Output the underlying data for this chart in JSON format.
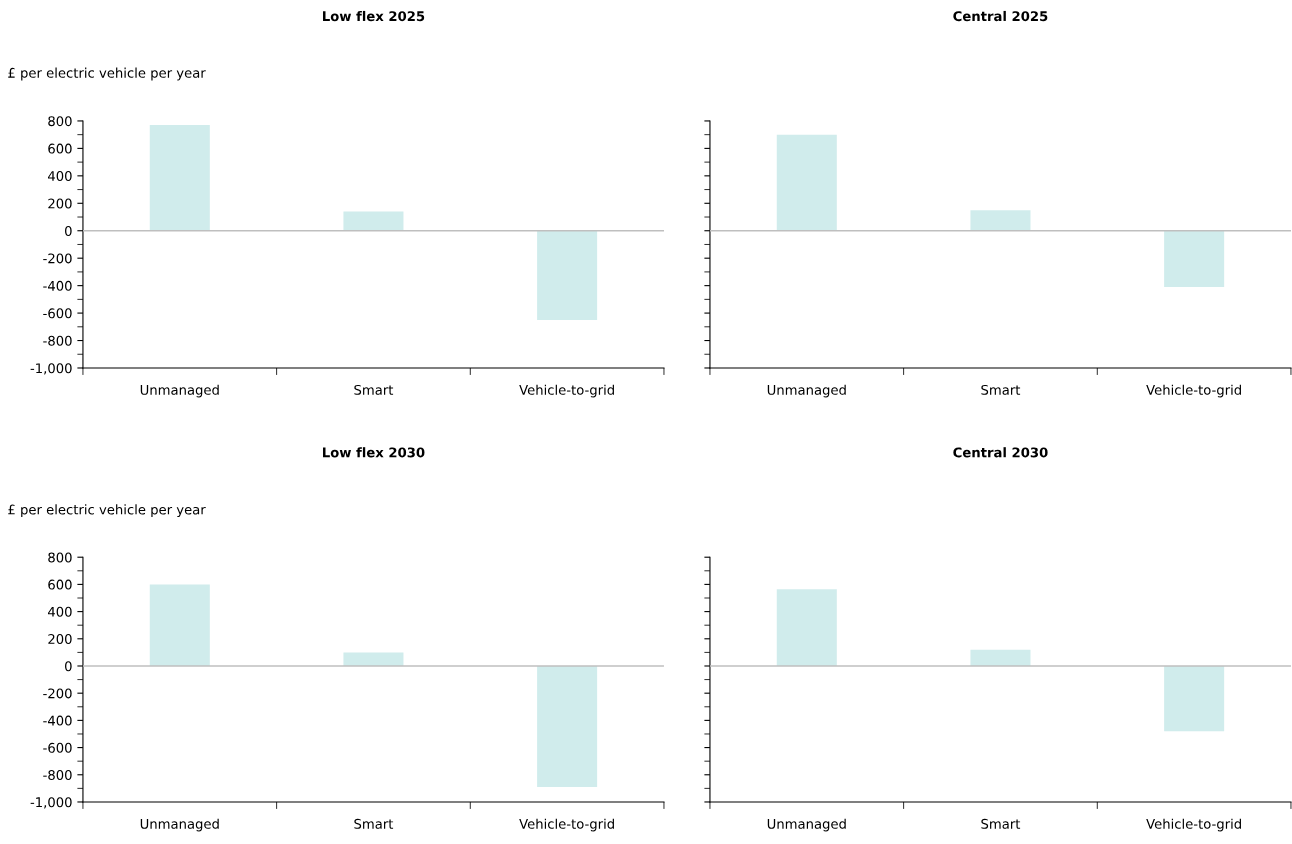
{
  "chart_data": [
    {
      "type": "bar",
      "title": "Low flex 2025",
      "ylabel": "£ per electric vehicle per year",
      "categories": [
        "Unmanaged",
        "Smart",
        "Vehicle-to-grid"
      ],
      "values": [
        770,
        140,
        -650
      ],
      "color": "#d0ecec",
      "ylim": [
        -1000,
        800
      ],
      "yticks": [
        {
          "value": -1000,
          "label": "-1,000"
        },
        -800,
        -600,
        -400,
        -200,
        0,
        200,
        400,
        600,
        800
      ],
      "ref_lines": [
        {
          "axis": "y",
          "value": 0,
          "color": "#bfbfbf"
        }
      ],
      "grid": false
    },
    {
      "type": "bar",
      "title": "Central 2025",
      "categories": [
        "Unmanaged",
        "Smart",
        "Vehicle-to-grid"
      ],
      "values": [
        700,
        150,
        -410
      ],
      "color": "#d0ecec",
      "ylim": [
        -1000,
        800
      ],
      "yticks": [
        -1000,
        -800,
        -600,
        -400,
        -200,
        0,
        200,
        400,
        600,
        800
      ],
      "tick_labels": "x",
      "ref_lines": [
        {
          "axis": "y",
          "value": 0,
          "color": "#bfbfbf"
        }
      ],
      "grid": false
    },
    {
      "type": "bar",
      "title": "Low flex 2030",
      "ylabel": "£ per electric vehicle per year",
      "categories": [
        "Unmanaged",
        "Smart",
        "Vehicle-to-grid"
      ],
      "values": [
        600,
        100,
        -890
      ],
      "color": "#d0ecec",
      "ylim": [
        -1000,
        800
      ],
      "yticks": [
        {
          "value": -1000,
          "label": "-1,000"
        },
        -800,
        -600,
        -400,
        -200,
        0,
        200,
        400,
        600,
        800
      ],
      "ref_lines": [
        {
          "axis": "y",
          "value": 0,
          "color": "#bfbfbf"
        }
      ],
      "grid": false
    },
    {
      "type": "bar",
      "title": "Central 2030",
      "categories": [
        "Unmanaged",
        "Smart",
        "Vehicle-to-grid"
      ],
      "values": [
        565,
        120,
        -480
      ],
      "color": "#d0ecec",
      "ylim": [
        -1000,
        800
      ],
      "yticks": [
        -1000,
        -800,
        -600,
        -400,
        -200,
        0,
        200,
        400,
        600,
        800
      ],
      "tick_labels": "x",
      "ref_lines": [
        {
          "axis": "y",
          "value": 0,
          "color": "#bfbfbf"
        }
      ],
      "grid": false
    }
  ]
}
